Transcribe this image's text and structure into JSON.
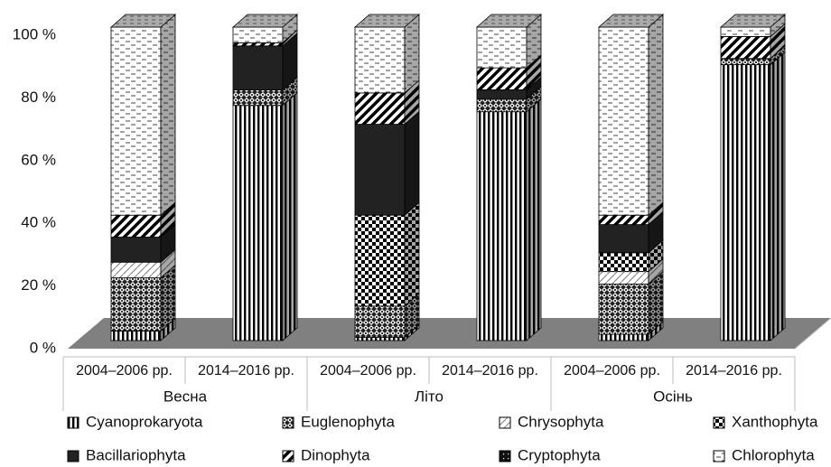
{
  "chart_data": {
    "type": "bar3d_stacked_percent",
    "categories": [
      "2004–2006 рр.",
      "2014–2016 рр.",
      "2004–2006 рр.",
      "2014–2016 рр.",
      "2004–2006 рр.",
      "2014–2016 рр."
    ],
    "groups": [
      {
        "label": "Весна",
        "span": 2
      },
      {
        "label": "Літо",
        "span": 2
      },
      {
        "label": "Осінь",
        "span": 2
      }
    ],
    "series": [
      {
        "name": "Cyanoprokaryota",
        "pattern": "vertical-stripes",
        "values": [
          3,
          75,
          1,
          73,
          2,
          88
        ]
      },
      {
        "name": "Euglenophyta",
        "pattern": "crosshatch",
        "values": [
          17,
          5,
          10,
          4,
          16,
          2
        ]
      },
      {
        "name": "Chrysophyta",
        "pattern": "light-diagonal",
        "values": [
          5,
          0,
          0,
          0,
          4,
          0
        ]
      },
      {
        "name": "Xanthophyta",
        "pattern": "checker",
        "values": [
          0,
          0,
          29,
          0,
          6,
          0
        ]
      },
      {
        "name": "Bacillariophyta",
        "pattern": "solid",
        "values": [
          8,
          14,
          29,
          3,
          9,
          0
        ]
      },
      {
        "name": "Dinophyta",
        "pattern": "wide-diagonal",
        "values": [
          7,
          1,
          10,
          7,
          3,
          7
        ]
      },
      {
        "name": "Cryptophyta",
        "pattern": "dots",
        "values": [
          0,
          0,
          0,
          0,
          0,
          0
        ]
      },
      {
        "name": "Chlorophyta",
        "pattern": "dashes",
        "values": [
          60,
          5,
          21,
          13,
          60,
          3
        ]
      }
    ],
    "ylim": [
      0,
      100
    ],
    "yticks": [
      {
        "value": 0,
        "label": "0 %"
      },
      {
        "value": 20,
        "label": "20 %"
      },
      {
        "value": 40,
        "label": "40 %"
      },
      {
        "value": 60,
        "label": "60 %"
      },
      {
        "value": 80,
        "label": "80 %"
      },
      {
        "value": 100,
        "label": "100 %"
      }
    ],
    "legend": "bottom"
  }
}
